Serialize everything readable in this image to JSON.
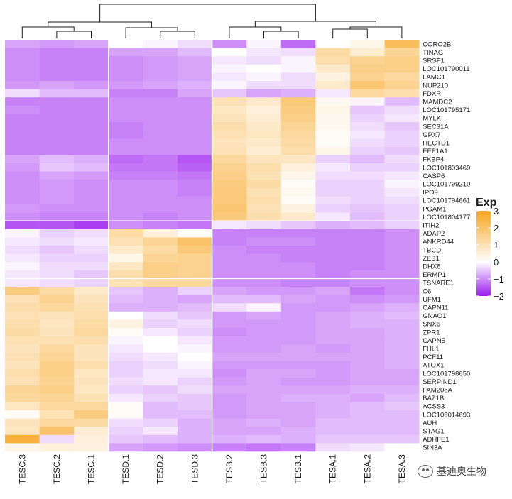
{
  "chart_data": {
    "type": "heatmap",
    "legend": {
      "title": "Exp",
      "ticks": [
        3,
        2,
        1,
        0,
        -1,
        -2
      ],
      "tick_labels": [
        "3",
        "2",
        "1",
        "0",
        "−1",
        "−2"
      ],
      "range": [
        -2,
        3
      ],
      "placement": "right"
    },
    "colors": {
      "low": "#9b1cf0",
      "mid": "#ffffff",
      "high": "#f7a51f",
      "grid": "#ffffff"
    },
    "columns": [
      "TESC.3",
      "TESC.2",
      "TESC.1",
      "TESD.1",
      "TESD.2",
      "TESD.3",
      "TESB.2",
      "TESB.3",
      "TESB.1",
      "TESA.1",
      "TESA.2",
      "TESA.3"
    ],
    "rows": [
      "CORO2B",
      "TINAG",
      "SRSF1",
      "LOC101790011",
      "LAMC1",
      "NUP210",
      "FDXR",
      "MAMDC2",
      "LOC101795171",
      "MYLK",
      "SEC31A",
      "GPX7",
      "HECTD1",
      "EEF1A1",
      "FKBP4",
      "LOC101803469",
      "CASP6",
      "LOC101799210",
      "IPO9",
      "LOC101794661",
      "PGAM1",
      "LOC101804177",
      "ITIH2",
      "ADAP2",
      "ANKRD44",
      "TBCD",
      "ZEB1",
      "DHX8",
      "ERMP1",
      "TSNARE1",
      "C6",
      "UFM1",
      "CAPN11",
      "GNAO1",
      "SNX6",
      "ZPR1",
      "CAPN5",
      "FHL1",
      "PCF11",
      "ATOX1",
      "LOC101798650",
      "SERPIND1",
      "FAM208A",
      "BAZ1B",
      "ACSS3",
      "LOC106014693",
      "AUH",
      "STAG1",
      "ADHFE1",
      "SIN3A"
    ],
    "values": [
      [
        -0.8,
        -0.9,
        -0.8,
        0.0,
        -0.1,
        -0.3,
        -1.0,
        -0.1,
        -1.3,
        0.0,
        0.3,
        2.2
      ],
      [
        -1.0,
        -1.1,
        -1.1,
        -0.8,
        -0.8,
        -0.6,
        0.0,
        -0.2,
        -0.3,
        1.2,
        0.6,
        1.4
      ],
      [
        -1.0,
        -1.1,
        -1.1,
        -1.0,
        -0.9,
        -0.8,
        -0.2,
        -0.3,
        -0.1,
        1.1,
        1.5,
        1.6
      ],
      [
        -1.0,
        -1.1,
        -1.1,
        -1.0,
        -0.9,
        -0.8,
        -0.1,
        0.0,
        -0.1,
        0.7,
        1.6,
        1.6
      ],
      [
        -1.0,
        -1.1,
        -1.1,
        -1.0,
        -0.9,
        -0.8,
        -0.2,
        -0.1,
        -0.3,
        0.4,
        1.5,
        1.3
      ],
      [
        -0.9,
        -0.8,
        -0.9,
        -0.9,
        -0.8,
        -0.7,
        -0.1,
        -0.3,
        -0.3,
        0.7,
        1.9,
        1.5
      ],
      [
        -0.3,
        -0.6,
        -0.6,
        -1.1,
        -1.1,
        -0.8,
        -0.5,
        -0.8,
        -0.7,
        -0.2,
        1.3,
        1.1
      ],
      [
        -1.1,
        -1.1,
        -1.1,
        -1.0,
        -1.0,
        -1.0,
        1.0,
        0.7,
        1.8,
        0.2,
        -0.1,
        -0.6
      ],
      [
        -1.0,
        -1.1,
        -1.1,
        -1.0,
        -1.0,
        -1.0,
        0.8,
        0.5,
        1.7,
        0.3,
        -0.5,
        -0.3
      ],
      [
        -1.1,
        -1.1,
        -1.1,
        -1.0,
        -1.0,
        -1.0,
        0.9,
        0.6,
        1.6,
        0.2,
        -0.4,
        -0.2
      ],
      [
        -1.1,
        -1.1,
        -1.1,
        -1.1,
        -1.0,
        -1.0,
        1.1,
        0.7,
        1.4,
        0.2,
        -0.3,
        -0.5
      ],
      [
        -1.1,
        -1.1,
        -1.1,
        -1.1,
        -1.0,
        -1.0,
        1.0,
        0.8,
        1.3,
        0.1,
        -0.2,
        -0.4
      ],
      [
        -1.1,
        -1.1,
        -1.1,
        -1.0,
        -1.0,
        -1.0,
        0.9,
        0.7,
        1.2,
        0.1,
        -0.3,
        -0.4
      ],
      [
        -1.1,
        -1.1,
        -1.1,
        -1.0,
        -1.0,
        -1.0,
        1.0,
        0.6,
        1.1,
        0.3,
        -0.4,
        -0.5
      ],
      [
        -0.8,
        -0.6,
        -0.7,
        -1.3,
        -1.2,
        -1.5,
        1.3,
        0.9,
        0.8,
        -0.4,
        -0.6,
        -0.3
      ],
      [
        -0.9,
        -0.5,
        -0.6,
        -1.2,
        -1.2,
        -1.4,
        1.5,
        1.1,
        0.5,
        -0.2,
        -0.4,
        -0.4
      ],
      [
        -1.0,
        -0.8,
        -0.9,
        -1.1,
        -1.1,
        -1.2,
        1.6,
        1.0,
        0.3,
        -0.3,
        -0.3,
        -0.2
      ],
      [
        -1.0,
        -0.9,
        -1.0,
        -1.0,
        -1.0,
        -1.1,
        1.7,
        1.2,
        0.1,
        -0.4,
        -0.4,
        -0.1
      ],
      [
        -1.0,
        -0.9,
        -1.0,
        -1.0,
        -1.0,
        -1.1,
        1.8,
        1.0,
        0.2,
        -0.4,
        -0.4,
        -0.2
      ],
      [
        -1.0,
        -0.9,
        -1.0,
        -1.0,
        -1.0,
        -1.0,
        1.8,
        1.1,
        0.1,
        -0.3,
        -0.4,
        -0.3
      ],
      [
        -0.9,
        -1.0,
        -1.0,
        -1.0,
        -1.0,
        -1.0,
        1.9,
        1.0,
        0.4,
        -0.4,
        -0.5,
        -0.4
      ],
      [
        -1.0,
        -1.1,
        -1.1,
        -1.0,
        -1.1,
        -1.0,
        1.8,
        1.1,
        0.7,
        -0.2,
        -0.6,
        -0.4
      ],
      [
        -1.5,
        -1.5,
        -1.7,
        -1.0,
        -1.1,
        -1.2,
        -0.2,
        -0.3,
        -0.5,
        -0.7,
        -0.6,
        -0.4
      ],
      [
        -0.1,
        -0.4,
        -0.3,
        1.2,
        0.5,
        0.0,
        -1.1,
        -1.1,
        -1.1,
        -1.1,
        -1.1,
        -1.0
      ],
      [
        -0.2,
        -0.3,
        -0.2,
        1.0,
        1.4,
        2.0,
        -1.1,
        -1.0,
        -1.0,
        -1.1,
        -1.1,
        -1.0
      ],
      [
        -0.3,
        -0.5,
        -0.3,
        0.7,
        1.2,
        1.8,
        -1.0,
        -1.1,
        -1.1,
        -1.1,
        -1.1,
        -1.0
      ],
      [
        -0.2,
        -0.4,
        -0.4,
        0.3,
        1.4,
        1.5,
        -1.0,
        -1.0,
        -1.1,
        -1.1,
        -1.1,
        -1.0
      ],
      [
        -0.1,
        -0.3,
        -0.3,
        0.8,
        1.6,
        1.5,
        -1.0,
        -1.0,
        -1.0,
        -1.1,
        -1.1,
        -1.0
      ],
      [
        -0.2,
        -0.3,
        -0.5,
        1.1,
        1.6,
        1.5,
        -1.0,
        -1.0,
        -1.0,
        -1.1,
        -1.0,
        -1.0
      ],
      [
        -0.2,
        -0.3,
        -0.4,
        1.0,
        1.3,
        1.3,
        -1.0,
        -1.0,
        -1.1,
        -1.1,
        -1.0,
        -1.0
      ],
      [
        1.7,
        1.2,
        0.7,
        -0.5,
        -0.7,
        -0.4,
        -0.8,
        -0.9,
        -0.9,
        -0.8,
        -1.2,
        -1.0
      ],
      [
        1.0,
        1.5,
        0.9,
        -0.6,
        -0.7,
        -0.8,
        -0.6,
        -0.6,
        -0.8,
        -0.9,
        -1.0,
        -0.9
      ],
      [
        1.1,
        1.3,
        1.0,
        -0.7,
        -0.7,
        -0.6,
        -0.3,
        -0.1,
        -0.9,
        -0.9,
        -0.8,
        -0.7
      ],
      [
        1.0,
        0.9,
        1.1,
        0.0,
        -0.3,
        -0.5,
        -0.9,
        -0.8,
        -0.9,
        -0.8,
        -0.7,
        -0.6
      ],
      [
        1.1,
        0.8,
        1.2,
        0.4,
        -0.4,
        -0.3,
        -0.9,
        -0.9,
        -0.9,
        -0.8,
        -0.7,
        -0.7
      ],
      [
        1.2,
        0.9,
        1.3,
        0.1,
        -0.2,
        -0.4,
        -1.0,
        -0.9,
        -0.9,
        -0.8,
        -0.8,
        -0.7
      ],
      [
        1.0,
        1.0,
        1.1,
        -0.1,
        0.0,
        -0.2,
        -0.9,
        -0.9,
        -0.9,
        -0.8,
        -0.8,
        -0.7
      ],
      [
        0.9,
        1.3,
        0.9,
        -0.2,
        0.0,
        -0.1,
        -0.9,
        -0.9,
        -0.8,
        -0.9,
        -0.8,
        -0.7
      ],
      [
        1.0,
        1.4,
        0.9,
        -0.3,
        -0.2,
        0.0,
        -0.8,
        -0.8,
        -0.8,
        -0.8,
        -0.8,
        -0.7
      ],
      [
        0.9,
        1.6,
        1.1,
        -0.4,
        -0.3,
        -0.1,
        -0.9,
        -0.9,
        -0.9,
        -0.9,
        -0.8,
        -0.7
      ],
      [
        1.1,
        1.6,
        0.8,
        -0.4,
        -0.2,
        -0.2,
        -1.0,
        -0.8,
        -0.8,
        -0.9,
        -0.8,
        -0.8
      ],
      [
        1.0,
        1.5,
        0.9,
        -0.3,
        -0.2,
        -0.4,
        -0.9,
        -0.8,
        -0.9,
        -0.9,
        -0.8,
        -0.8
      ],
      [
        1.4,
        1.6,
        0.8,
        -0.4,
        -0.5,
        -0.3,
        -0.8,
        -0.8,
        -0.8,
        -0.8,
        -0.7,
        -0.7
      ],
      [
        1.3,
        1.4,
        1.0,
        -0.2,
        -0.4,
        -0.5,
        -0.9,
        -0.8,
        -0.7,
        -0.7,
        -0.8,
        -0.6
      ],
      [
        0.8,
        1.3,
        1.3,
        0.1,
        -0.6,
        -0.5,
        -0.9,
        -0.8,
        -0.8,
        -0.7,
        -0.6,
        -0.5
      ],
      [
        0.1,
        1.0,
        1.7,
        0.1,
        -0.6,
        -0.6,
        -0.9,
        -0.8,
        -0.8,
        -0.7,
        -0.6,
        -0.6
      ],
      [
        0.9,
        1.3,
        1.2,
        -0.3,
        -0.4,
        -0.7,
        -0.8,
        -0.7,
        -0.8,
        -0.6,
        -0.6,
        -0.6
      ],
      [
        0.8,
        2.0,
        0.6,
        -0.4,
        -0.2,
        -0.7,
        -0.8,
        -0.8,
        -0.7,
        -0.6,
        -0.6,
        -0.6
      ],
      [
        2.6,
        -0.3,
        0.5,
        -0.5,
        -0.6,
        -0.7,
        -0.7,
        -0.6,
        -0.7,
        -0.5,
        -0.5,
        -0.5
      ],
      [
        0.3,
        0.5,
        0.4,
        -0.8,
        -0.9,
        -1.0,
        -1.1,
        -1.2,
        -1.1,
        -0.3,
        -0.2,
        0.0
      ]
    ],
    "row_splits": [
      22,
      29
    ],
    "col_splits": [
      3,
      6
    ]
  },
  "watermark": {
    "text": "基迪奥生物"
  }
}
